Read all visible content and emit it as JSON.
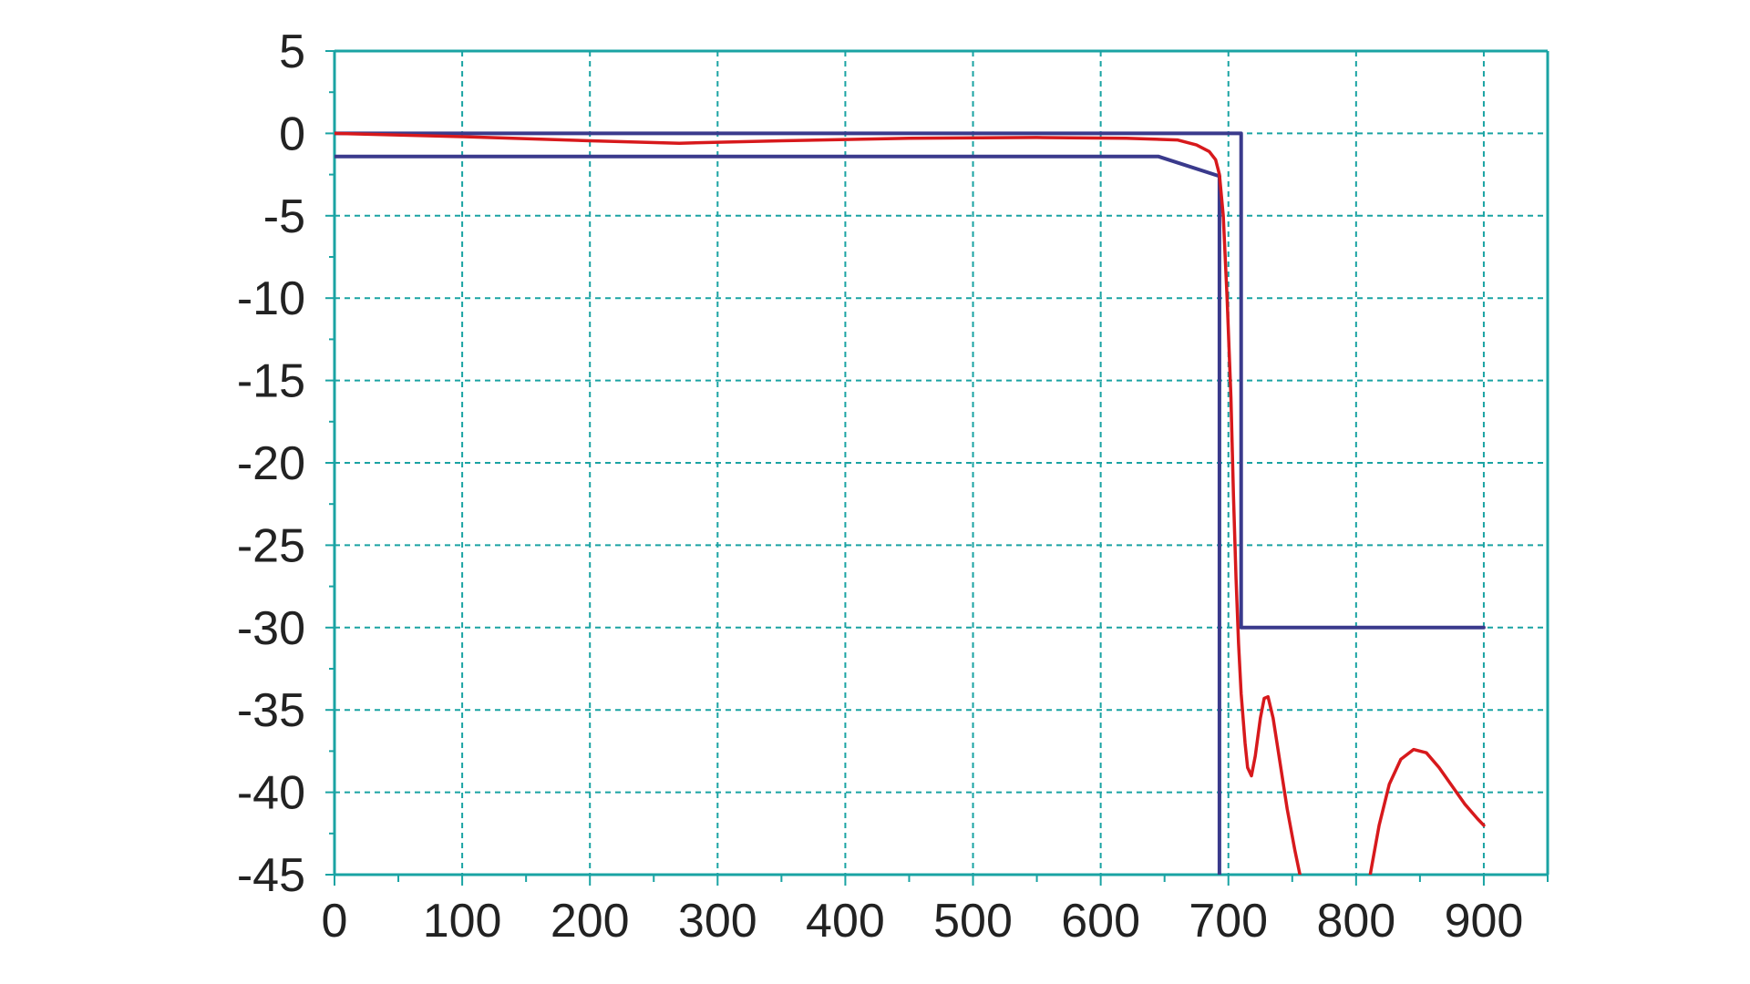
{
  "chart_data": {
    "type": "line",
    "title": "",
    "xlabel": "",
    "ylabel": "",
    "xlim": [
      0,
      950
    ],
    "ylim": [
      -45,
      5
    ],
    "x_ticks": [
      0,
      100,
      200,
      300,
      400,
      500,
      600,
      700,
      800,
      900
    ],
    "x_tick_labels": [
      "0",
      "100",
      "200",
      "300",
      "400",
      "500",
      "600",
      "700",
      "800",
      "900"
    ],
    "y_ticks": [
      5,
      0,
      -5,
      -10,
      -15,
      -20,
      -25,
      -30,
      -35,
      -40,
      -45
    ],
    "y_tick_labels": [
      "5",
      "0",
      "-5",
      "-10",
      "-15",
      "-20",
      "-25",
      "-30",
      "-35",
      "-40",
      "-45"
    ],
    "grid": true,
    "colors": {
      "grid": "#1aa3a3",
      "axes": "#1aa3a3",
      "mask": "#3a3a8c",
      "response": "#d7191c"
    },
    "series": [
      {
        "role": "upper-mask",
        "color": "#3a3a8c",
        "points": [
          [
            0,
            0
          ],
          [
            710,
            0
          ],
          [
            710,
            -30
          ],
          [
            900,
            -30
          ]
        ]
      },
      {
        "role": "lower-mask",
        "color": "#3a3a8c",
        "points": [
          [
            0,
            -1.4
          ],
          [
            645,
            -1.4
          ],
          [
            693,
            -2.6
          ],
          [
            693,
            -45
          ]
        ]
      },
      {
        "role": "response",
        "color": "#d7191c",
        "segments": [
          [
            [
              0,
              0
            ],
            [
              100,
              -0.2
            ],
            [
              200,
              -0.45
            ],
            [
              270,
              -0.6
            ],
            [
              350,
              -0.45
            ],
            [
              450,
              -0.3
            ],
            [
              550,
              -0.25
            ],
            [
              620,
              -0.3
            ],
            [
              660,
              -0.4
            ],
            [
              675,
              -0.7
            ],
            [
              685,
              -1.1
            ],
            [
              690,
              -1.6
            ],
            [
              693,
              -2.5
            ],
            [
              696,
              -5
            ],
            [
              699,
              -10
            ],
            [
              702,
              -16
            ],
            [
              704,
              -22
            ],
            [
              706,
              -27
            ],
            [
              708,
              -31
            ],
            [
              710,
              -34
            ],
            [
              713,
              -37
            ],
            [
              715,
              -38.5
            ],
            [
              718,
              -39
            ],
            [
              721,
              -37.8
            ],
            [
              725,
              -35.5
            ],
            [
              728,
              -34.3
            ],
            [
              731,
              -34.2
            ],
            [
              735,
              -35.5
            ],
            [
              740,
              -38
            ],
            [
              746,
              -41
            ],
            [
              752,
              -43.5
            ],
            [
              756,
              -45
            ]
          ],
          [
            [
              811,
              -45
            ],
            [
              818,
              -42
            ],
            [
              826,
              -39.5
            ],
            [
              835,
              -38
            ],
            [
              845,
              -37.4
            ],
            [
              855,
              -37.6
            ],
            [
              865,
              -38.5
            ],
            [
              875,
              -39.6
            ],
            [
              885,
              -40.7
            ],
            [
              895,
              -41.6
            ],
            [
              900,
              -42
            ]
          ]
        ]
      }
    ]
  }
}
